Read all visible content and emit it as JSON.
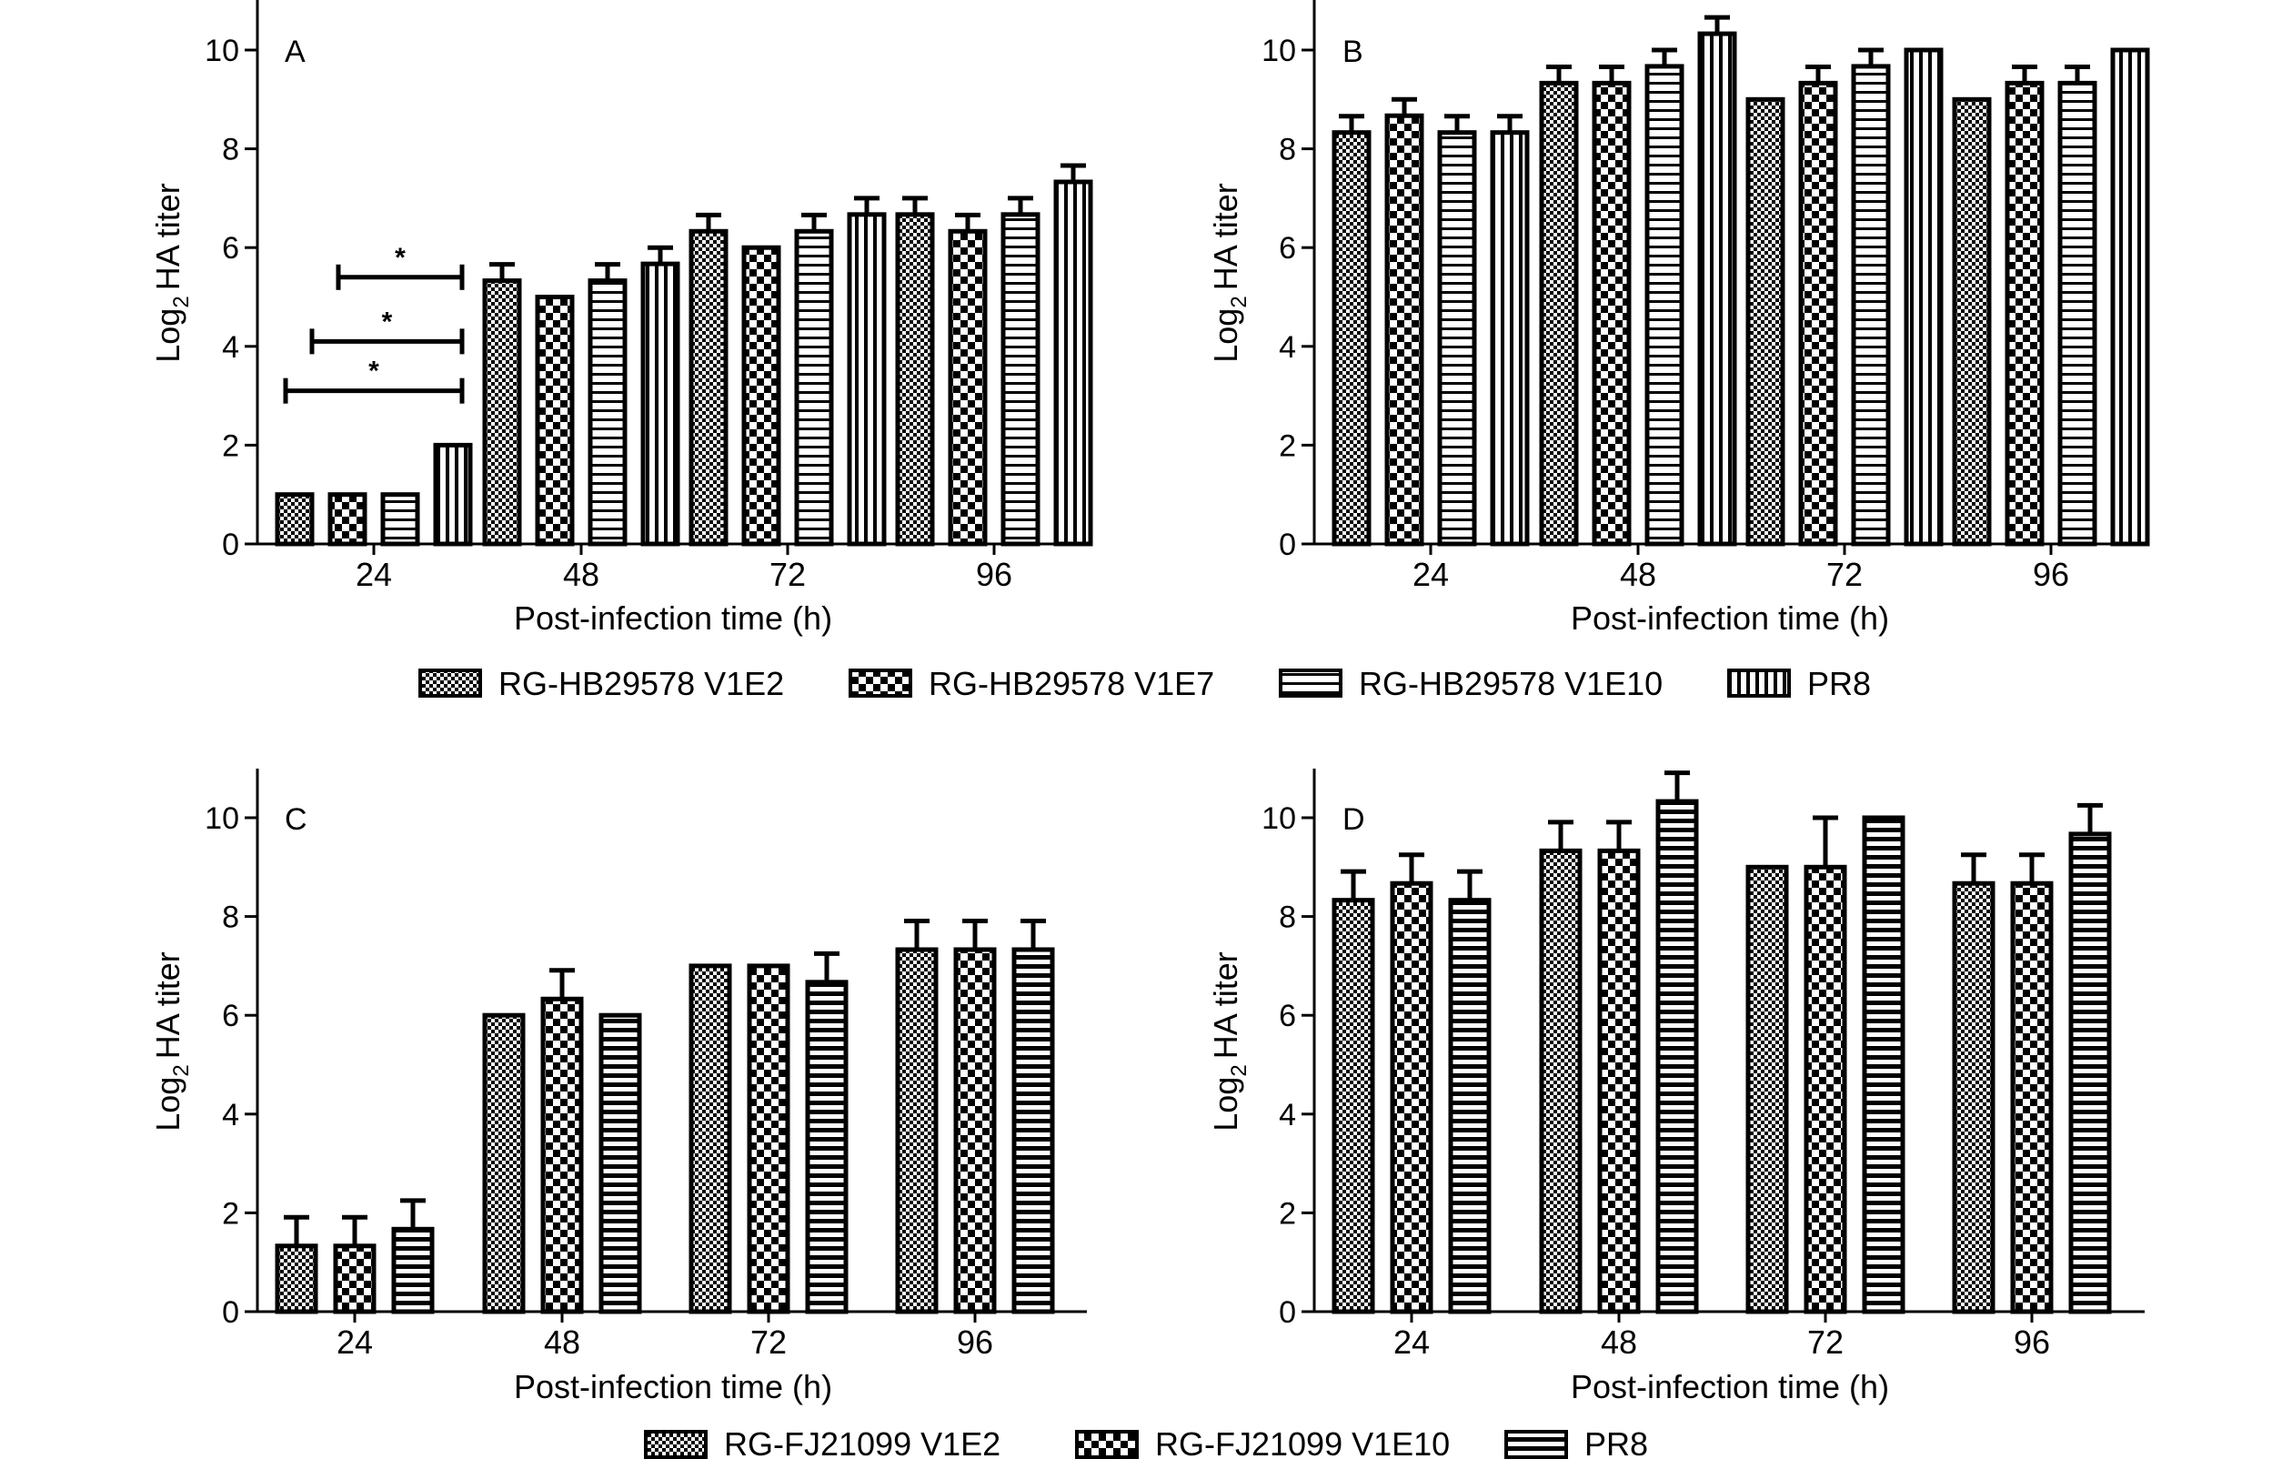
{
  "chart_data": [
    {
      "panel": "A",
      "type": "bar",
      "xlabel": "Post-infection time (h)",
      "ylabel_prefix": "Log",
      "ylabel_sub": "2",
      "ylabel_suffix": "HA titer",
      "categories": [
        "24",
        "48",
        "72",
        "96"
      ],
      "ylim": [
        0,
        11
      ],
      "yticks": [
        0,
        2,
        4,
        6,
        8,
        10
      ],
      "series_group": "top",
      "series": [
        {
          "name": "RG-HB29578 V1E2",
          "values": [
            1,
            5.33,
            6.33,
            6.67
          ],
          "errors": [
            0,
            0.33,
            0.33,
            0.33
          ]
        },
        {
          "name": "RG-HB29578 V1E7",
          "values": [
            1,
            5,
            6,
            6.33
          ],
          "errors": [
            0,
            0,
            0,
            0.33
          ]
        },
        {
          "name": "RG-HB29578 V1E10",
          "values": [
            1,
            5.33,
            6.33,
            6.67
          ],
          "errors": [
            0,
            0.33,
            0.33,
            0.33
          ]
        },
        {
          "name": "PR8",
          "values": [
            2,
            5.67,
            6.67,
            7.33
          ],
          "errors": [
            0,
            0.33,
            0.33,
            0.33
          ]
        }
      ],
      "significance": [
        {
          "label": "*",
          "from": 1,
          "to": 3,
          "y": 5.4
        },
        {
          "label": "*",
          "from": 0.5,
          "to": 3,
          "y": 4.1
        },
        {
          "label": "*",
          "from": 0,
          "to": 3,
          "y": 3.1
        }
      ]
    },
    {
      "panel": "B",
      "type": "bar",
      "xlabel": "Post-infection time (h)",
      "ylabel_prefix": "Log",
      "ylabel_sub": "2",
      "ylabel_suffix": "HA titer",
      "categories": [
        "24",
        "48",
        "72",
        "96"
      ],
      "ylim": [
        0,
        11
      ],
      "yticks": [
        0,
        2,
        4,
        6,
        8,
        10
      ],
      "series_group": "top",
      "series": [
        {
          "name": "RG-HB29578 V1E2",
          "values": [
            8.33,
            9.33,
            9,
            9
          ],
          "errors": [
            0.33,
            0.33,
            0,
            0
          ]
        },
        {
          "name": "RG-HB29578 V1E7",
          "values": [
            8.67,
            9.33,
            9.33,
            9.33
          ],
          "errors": [
            0.33,
            0.33,
            0.33,
            0.33
          ]
        },
        {
          "name": "RG-HB29578 V1E10",
          "values": [
            8.33,
            9.67,
            9.67,
            9.33
          ],
          "errors": [
            0.33,
            0.33,
            0.33,
            0.33
          ]
        },
        {
          "name": "PR8",
          "values": [
            8.33,
            10.33,
            10,
            10
          ],
          "errors": [
            0.33,
            0.33,
            0,
            0
          ]
        }
      ]
    },
    {
      "panel": "C",
      "type": "bar",
      "xlabel": "Post-infection time (h)",
      "ylabel_prefix": "Log",
      "ylabel_sub": "2",
      "ylabel_suffix": "HA titer",
      "categories": [
        "24",
        "48",
        "72",
        "96"
      ],
      "ylim": [
        0,
        11
      ],
      "yticks": [
        0,
        2,
        4,
        6,
        8,
        10
      ],
      "series_group": "bottom",
      "series": [
        {
          "name": "RG-FJ21099 V1E2",
          "values": [
            1.33,
            6,
            7,
            7.33
          ],
          "errors": [
            0.58,
            0,
            0,
            0.58
          ]
        },
        {
          "name": "RG-FJ21099 V1E10",
          "values": [
            1.33,
            6.33,
            7,
            7.33
          ],
          "errors": [
            0.58,
            0.58,
            0,
            0.58
          ]
        },
        {
          "name": "PR8",
          "values": [
            1.67,
            6,
            6.67,
            7.33
          ],
          "errors": [
            0.58,
            0,
            0.58,
            0.58
          ]
        }
      ]
    },
    {
      "panel": "D",
      "type": "bar",
      "xlabel": "Post-infection time (h)",
      "ylabel_prefix": "Log",
      "ylabel_sub": "2",
      "ylabel_suffix": "HA titer",
      "categories": [
        "24",
        "48",
        "72",
        "96"
      ],
      "ylim": [
        0,
        11
      ],
      "yticks": [
        0,
        2,
        4,
        6,
        8,
        10
      ],
      "series_group": "bottom",
      "series": [
        {
          "name": "RG-FJ21099 V1E2",
          "values": [
            8.33,
            9.33,
            9,
            8.67
          ],
          "errors": [
            0.58,
            0.58,
            0,
            0.58
          ]
        },
        {
          "name": "RG-FJ21099 V1E10",
          "values": [
            8.67,
            9.33,
            9,
            8.67
          ],
          "errors": [
            0.58,
            0.58,
            1,
            0.58
          ]
        },
        {
          "name": "PR8",
          "values": [
            8.33,
            10.33,
            10,
            9.67
          ],
          "errors": [
            0.58,
            0.58,
            0,
            0.58
          ]
        }
      ]
    }
  ],
  "legends": {
    "top": [
      "RG-HB29578 V1E2",
      "RG-HB29578 V1E7",
      "RG-HB29578 V1E10",
      "PR8"
    ],
    "top_patterns": [
      "fine-check",
      "coarse-check",
      "hstripe-wide",
      "vstripe"
    ],
    "bottom": [
      "RG-FJ21099 V1E2",
      "RG-FJ21099 V1E10",
      "PR8"
    ],
    "bottom_patterns": [
      "fine-check",
      "coarse-check",
      "hstripe"
    ]
  }
}
